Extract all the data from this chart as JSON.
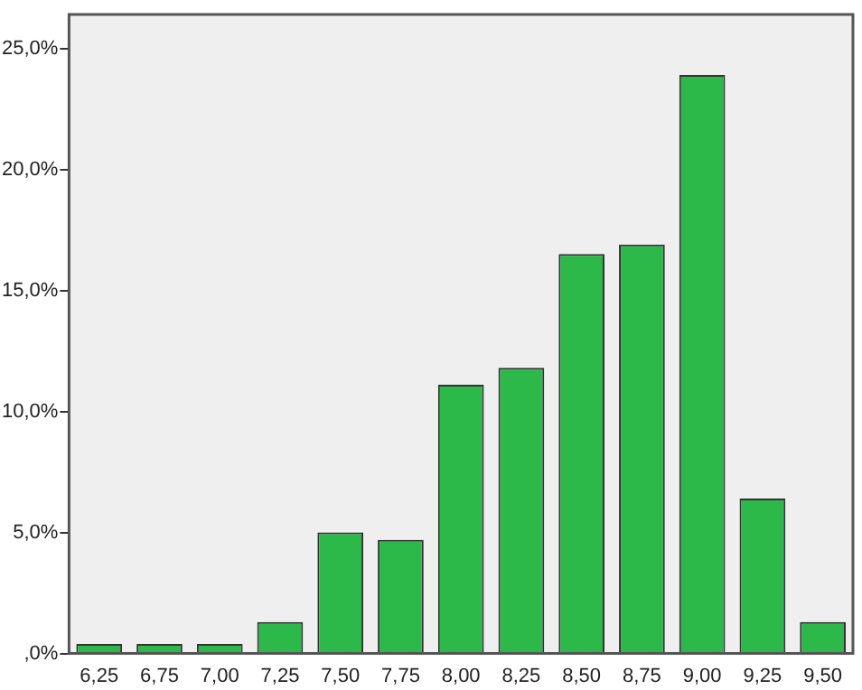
{
  "chart_data": {
    "type": "bar",
    "categories": [
      "6,25",
      "6,75",
      "7,00",
      "7,25",
      "7,50",
      "7,75",
      "8,00",
      "8,25",
      "8,50",
      "8,75",
      "9,00",
      "9,25",
      "9,50"
    ],
    "values": [
      0.4,
      0.4,
      0.4,
      1.3,
      5.0,
      4.7,
      11.1,
      11.8,
      16.5,
      16.9,
      23.9,
      6.4,
      1.3
    ],
    "color": "#2db84a",
    "ylim": [
      0,
      26.4
    ],
    "yticks": [
      {
        "value": 0,
        "label": ",0%"
      },
      {
        "value": 5,
        "label": "5,0%"
      },
      {
        "value": 10,
        "label": "10,0%"
      },
      {
        "value": 15,
        "label": "15,0%"
      },
      {
        "value": 20,
        "label": "20,0%"
      },
      {
        "value": 25,
        "label": "25,0%"
      }
    ],
    "grid": false,
    "legend": false
  }
}
